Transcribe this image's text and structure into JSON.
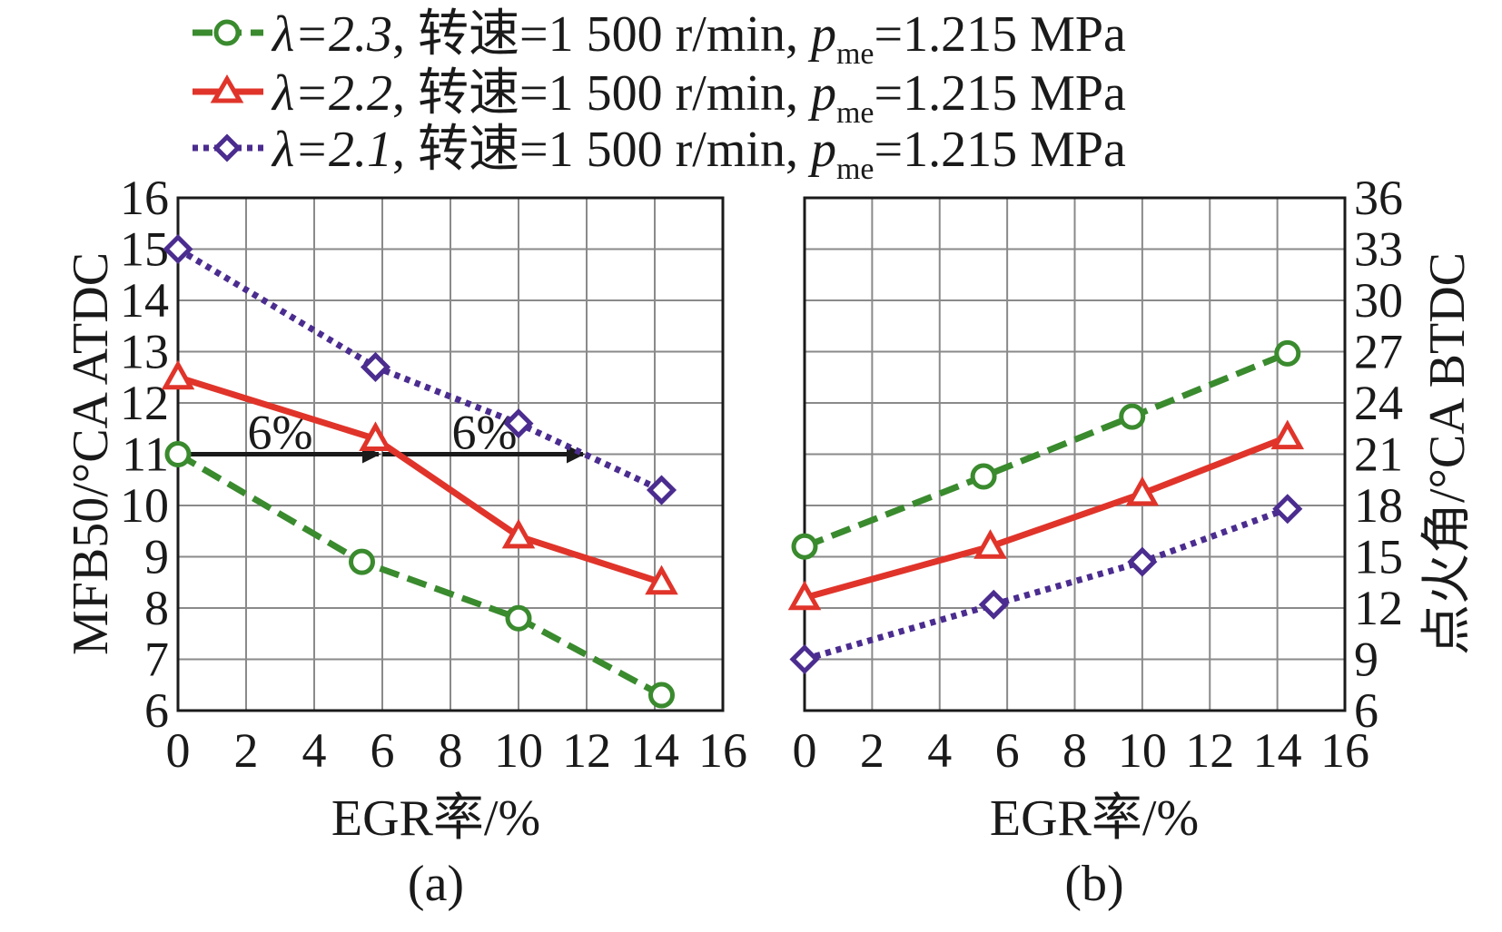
{
  "chart_data": [
    {
      "type": "line",
      "panel_label": "(a)",
      "xlabel": "EGR率/%",
      "ylabel": "MFB50/°CA ATDC",
      "xlim": [
        0,
        16
      ],
      "ylim": [
        6,
        16
      ],
      "x_ticks": [
        0,
        2,
        4,
        6,
        8,
        10,
        12,
        14,
        16
      ],
      "y_ticks": [
        6,
        7,
        8,
        9,
        10,
        11,
        12,
        13,
        14,
        15,
        16
      ],
      "y_axis_side": "left",
      "grid": true,
      "series": [
        {
          "name": "λ=2.3",
          "x": [
            0,
            5.4,
            10,
            14.2
          ],
          "values": [
            11.0,
            8.9,
            7.8,
            6.3
          ]
        },
        {
          "name": "λ=2.2",
          "x": [
            0,
            5.8,
            10,
            14.2
          ],
          "values": [
            12.5,
            11.3,
            9.4,
            8.5
          ]
        },
        {
          "name": "λ=2.1",
          "x": [
            0,
            5.8,
            10,
            14.2
          ],
          "values": [
            15.0,
            12.7,
            11.6,
            10.3
          ]
        }
      ],
      "annotations": [
        {
          "text": "6%",
          "from": [
            0,
            11
          ],
          "to": [
            6,
            11
          ]
        },
        {
          "text": "6%",
          "from": [
            6,
            11
          ],
          "to": [
            12,
            11
          ]
        }
      ]
    },
    {
      "type": "line",
      "panel_label": "(b)",
      "xlabel": "EGR率/%",
      "ylabel": "点火角/°CA BTDC",
      "xlim": [
        0,
        16
      ],
      "ylim": [
        6,
        36
      ],
      "x_ticks": [
        0,
        2,
        4,
        6,
        8,
        10,
        12,
        14,
        16
      ],
      "y_ticks": [
        6,
        9,
        12,
        15,
        18,
        21,
        24,
        27,
        30,
        33,
        36
      ],
      "y_axis_side": "right",
      "grid": true,
      "series": [
        {
          "name": "λ=2.3",
          "x": [
            0,
            5.3,
            9.7,
            14.3
          ],
          "values": [
            15.6,
            19.7,
            23.2,
            26.9
          ]
        },
        {
          "name": "λ=2.2",
          "x": [
            0,
            5.5,
            10,
            14.3
          ],
          "values": [
            12.6,
            15.6,
            18.7,
            22.0
          ]
        },
        {
          "name": "λ=2.1",
          "x": [
            0,
            5.6,
            10,
            14.3
          ],
          "values": [
            9.0,
            12.2,
            14.7,
            17.8
          ]
        }
      ]
    }
  ],
  "legend": {
    "position": "top",
    "entries": [
      {
        "lambda": "λ=2.3",
        "label_mid": ", 转速=1 500 r/min, ",
        "p": "p",
        "sub": "me",
        "label_end": "=1.215 MPa",
        "color": "#3a8a2e",
        "marker": "circle",
        "dash": "dashed"
      },
      {
        "lambda": "λ=2.2",
        "label_mid": ", 转速=1 500 r/min, ",
        "p": "p",
        "sub": "me",
        "label_end": "=1.215 MPa",
        "color": "#e0342a",
        "marker": "triangle",
        "dash": "solid"
      },
      {
        "lambda": "λ=2.1",
        "label_mid": ", 转速=1 500 r/min, ",
        "p": "p",
        "sub": "me",
        "label_end": "=1.215 MPa",
        "color": "#4b2c8f",
        "marker": "diamond",
        "dash": "dotted"
      }
    ]
  }
}
